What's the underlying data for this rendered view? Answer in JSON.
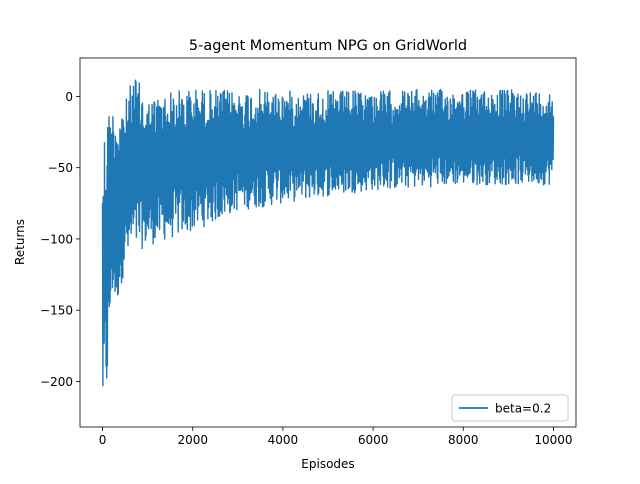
{
  "chart_data": {
    "type": "line",
    "title": "5-agent Momentum NPG on GridWorld",
    "xlabel": "Episodes",
    "ylabel": "Returns",
    "xlim": [
      -500,
      10500
    ],
    "ylim": [
      -232,
      27
    ],
    "x_ticks": [
      0,
      2000,
      4000,
      6000,
      8000,
      10000
    ],
    "x_tick_labels": [
      "0",
      "2000",
      "4000",
      "6000",
      "8000",
      "10000"
    ],
    "y_ticks": [
      -200,
      -150,
      -100,
      -50,
      0
    ],
    "y_tick_labels": [
      "−200",
      "−150",
      "−100",
      "−50",
      "0"
    ],
    "grid": false,
    "legend_position": "lower-right",
    "series": [
      {
        "name": "beta=0.2",
        "color": "#1f77b4",
        "envelope": {
          "x": [
            0,
            100,
            200,
            300,
            500,
            700,
            1000,
            1500,
            2000,
            2500,
            3000,
            3500,
            4000,
            5000,
            6000,
            7000,
            8000,
            9000,
            10000
          ],
          "upper": [
            -30,
            -8,
            -7,
            -6,
            -4,
            17,
            -2,
            4,
            6,
            5,
            4,
            5,
            4,
            4,
            4,
            5,
            5,
            5,
            4
          ],
          "lower": [
            -225,
            -210,
            -140,
            -150,
            -120,
            -110,
            -105,
            -100,
            -95,
            -88,
            -80,
            -78,
            -75,
            -70,
            -66,
            -64,
            -62,
            -62,
            -62
          ]
        }
      }
    ]
  }
}
